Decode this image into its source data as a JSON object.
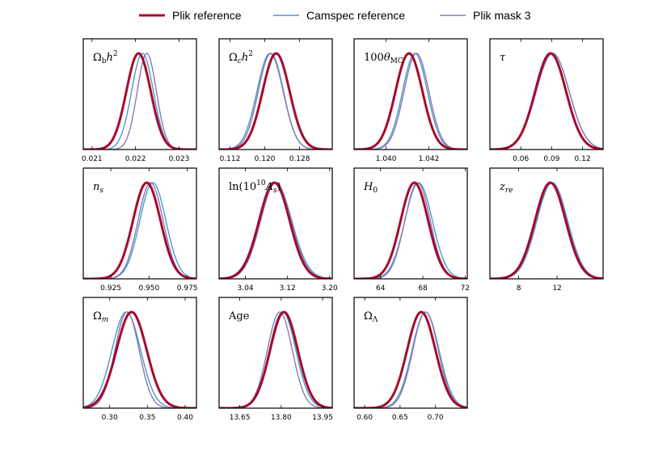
{
  "legend": {
    "entries": [
      {
        "name": "Plik reference",
        "color": "#a50a2c",
        "width": 3.0
      },
      {
        "name": "Camspec reference",
        "color": "#4a9bc7",
        "width": 1.4
      },
      {
        "name": "Plik mask 3",
        "color": "#8a78b8",
        "width": 1.4
      }
    ]
  },
  "chart_data": [
    {
      "type": "line",
      "param": "Ω_b h^2",
      "xrange": [
        0.0208,
        0.0234
      ],
      "ticks": [
        0.021,
        0.022,
        0.023
      ],
      "tick_labels": [
        "0.021",
        "0.022",
        "0.023"
      ],
      "series": [
        {
          "name": "Plik reference",
          "mean": 0.02207,
          "sigma": 0.00028
        },
        {
          "name": "Camspec reference",
          "mean": 0.02216,
          "sigma": 0.00025
        },
        {
          "name": "Plik mask 3",
          "mean": 0.02226,
          "sigma": 0.00022
        }
      ]
    },
    {
      "type": "line",
      "param": "Ω_c h^2",
      "xrange": [
        0.1095,
        0.1355
      ],
      "ticks": [
        0.112,
        0.12,
        0.128
      ],
      "tick_labels": [
        "0.112",
        "0.120",
        "0.128"
      ],
      "series": [
        {
          "name": "Plik reference",
          "mean": 0.1226,
          "sigma": 0.0031
        },
        {
          "name": "Camspec reference",
          "mean": 0.1212,
          "sigma": 0.003
        },
        {
          "name": "Plik mask 3",
          "mean": 0.1214,
          "sigma": 0.0029
        }
      ]
    },
    {
      "type": "line",
      "param": "100θ_MC",
      "xrange": [
        1.0385,
        1.0438
      ],
      "ticks": [
        1.04,
        1.042
      ],
      "tick_labels": [
        "1.040",
        "1.042"
      ],
      "series": [
        {
          "name": "Plik reference",
          "mean": 1.04107,
          "sigma": 0.00063
        },
        {
          "name": "Camspec reference",
          "mean": 1.04135,
          "sigma": 0.00058
        },
        {
          "name": "Plik mask 3",
          "mean": 1.04142,
          "sigma": 0.00058
        }
      ]
    },
    {
      "type": "line",
      "param": "τ",
      "xrange": [
        0.03,
        0.14
      ],
      "ticks": [
        0.06,
        0.09,
        0.12
      ],
      "tick_labels": [
        "0.06",
        "0.09",
        "0.12"
      ],
      "series": [
        {
          "name": "Plik reference",
          "mean": 0.089,
          "sigma": 0.015
        },
        {
          "name": "Camspec reference",
          "mean": 0.091,
          "sigma": 0.016
        },
        {
          "name": "Plik mask 3",
          "mean": 0.091,
          "sigma": 0.016
        }
      ]
    },
    {
      "type": "line",
      "param": "n_s",
      "xrange": [
        0.907,
        0.981
      ],
      "ticks": [
        0.925,
        0.95,
        0.975
      ],
      "tick_labels": [
        "0.925",
        "0.950",
        "0.975"
      ],
      "series": [
        {
          "name": "Plik reference",
          "mean": 0.9485,
          "sigma": 0.009
        },
        {
          "name": "Camspec reference",
          "mean": 0.9525,
          "sigma": 0.0085
        },
        {
          "name": "Plik mask 3",
          "mean": 0.951,
          "sigma": 0.0082
        }
      ]
    },
    {
      "type": "line",
      "param": "ln(10^10 A_s)",
      "xrange": [
        2.99,
        3.205
      ],
      "ticks": [
        3.04,
        3.12,
        3.2
      ],
      "tick_labels": [
        "3.04",
        "3.12",
        "3.20"
      ],
      "series": [
        {
          "name": "Plik reference",
          "mean": 3.095,
          "sigma": 0.029
        },
        {
          "name": "Camspec reference",
          "mean": 3.097,
          "sigma": 0.031
        },
        {
          "name": "Plik mask 3",
          "mean": 3.098,
          "sigma": 0.029
        }
      ]
    },
    {
      "type": "line",
      "param": "H_0",
      "xrange": [
        61.5,
        72.2
      ],
      "ticks": [
        64,
        68,
        72
      ],
      "tick_labels": [
        "64",
        "68",
        "72"
      ],
      "series": [
        {
          "name": "Plik reference",
          "mean": 67.2,
          "sigma": 1.3
        },
        {
          "name": "Camspec reference",
          "mean": 67.6,
          "sigma": 1.3
        },
        {
          "name": "Plik mask 3",
          "mean": 67.5,
          "sigma": 1.2
        }
      ]
    },
    {
      "type": "line",
      "param": "z_re",
      "xrange": [
        5.0,
        16.8
      ],
      "ticks": [
        8,
        12
      ],
      "tick_labels": [
        "8",
        "12"
      ],
      "series": [
        {
          "name": "Plik reference",
          "mean": 11.3,
          "sigma": 1.6
        },
        {
          "name": "Camspec reference",
          "mean": 11.5,
          "sigma": 1.6
        },
        {
          "name": "Plik mask 3",
          "mean": 11.4,
          "sigma": 1.6
        }
      ]
    },
    {
      "type": "line",
      "param": "Ω_m",
      "xrange": [
        0.265,
        0.415
      ],
      "ticks": [
        0.3,
        0.35,
        0.4
      ],
      "tick_labels": [
        "0.30",
        "0.35",
        "0.40"
      ],
      "series": [
        {
          "name": "Plik reference",
          "mean": 0.329,
          "sigma": 0.02
        },
        {
          "name": "Camspec reference",
          "mean": 0.322,
          "sigma": 0.019
        },
        {
          "name": "Plik mask 3",
          "mean": 0.323,
          "sigma": 0.016
        }
      ]
    },
    {
      "type": "line",
      "param": "Age",
      "xrange": [
        13.575,
        13.985
      ],
      "ticks": [
        13.65,
        13.8,
        13.95
      ],
      "tick_labels": [
        "13.65",
        "13.80",
        "13.95"
      ],
      "series": [
        {
          "name": "Plik reference",
          "mean": 13.81,
          "sigma": 0.05
        },
        {
          "name": "Camspec reference",
          "mean": 13.805,
          "sigma": 0.048
        },
        {
          "name": "Plik mask 3",
          "mean": 13.795,
          "sigma": 0.045
        }
      ]
    },
    {
      "type": "line",
      "param": "Ω_Λ",
      "xrange": [
        0.585,
        0.745
      ],
      "ticks": [
        0.6,
        0.65,
        0.7
      ],
      "tick_labels": [
        "0.60",
        "0.65",
        "0.70"
      ],
      "series": [
        {
          "name": "Plik reference",
          "mean": 0.68,
          "sigma": 0.02
        },
        {
          "name": "Camspec reference",
          "mean": 0.686,
          "sigma": 0.019
        },
        {
          "name": "Plik mask 3",
          "mean": 0.686,
          "sigma": 0.018
        }
      ]
    }
  ]
}
